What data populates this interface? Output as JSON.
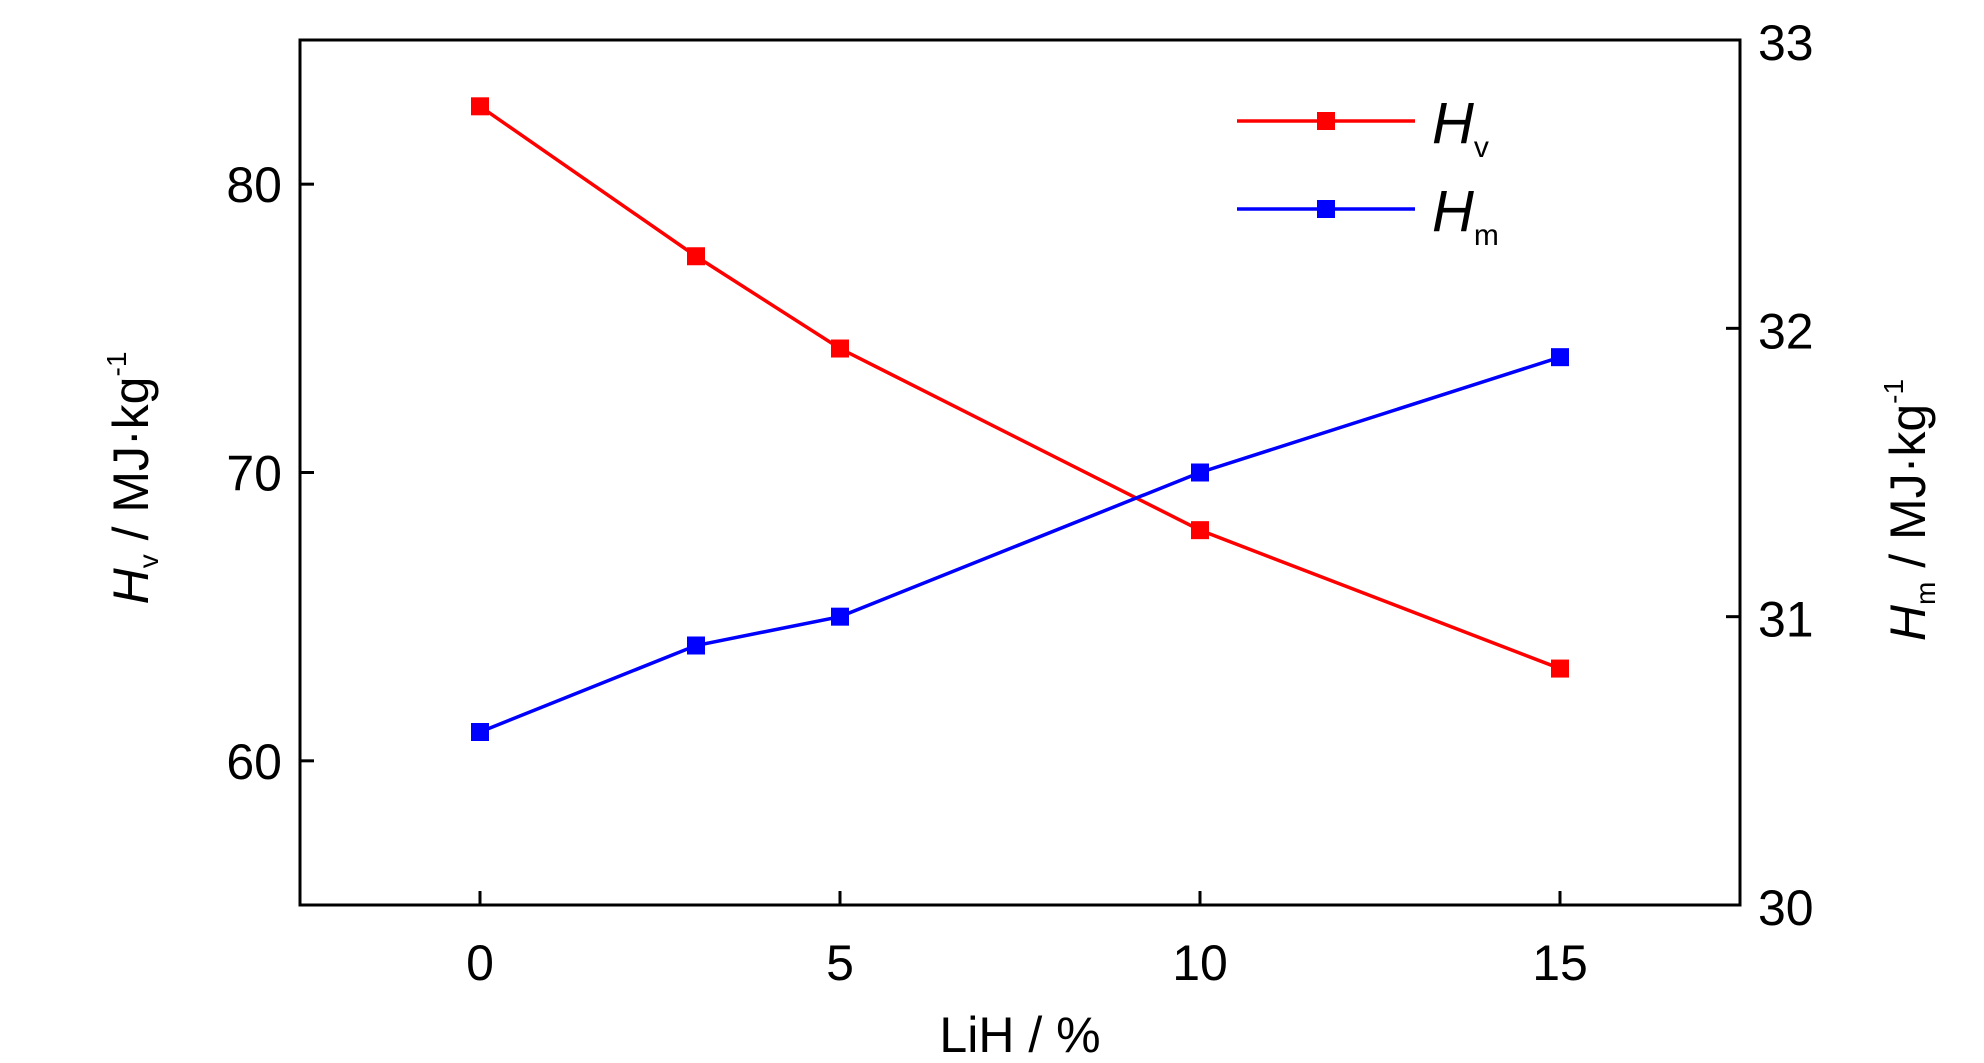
{
  "chart_data": {
    "type": "line",
    "x": [
      0,
      3,
      5,
      10,
      15
    ],
    "xlim": [
      -2.5,
      17.5
    ],
    "xticks": [
      0,
      5,
      10,
      15
    ],
    "xtick_labels": [
      "0",
      "5",
      "10",
      "15"
    ],
    "xlabel": "LiH / %",
    "ylabel_left": {
      "symbol": "H",
      "subscript": "v",
      "unit": " / MJ·kg",
      "superscript": "-1"
    },
    "ylabel_right": {
      "symbol": "H",
      "subscript": "m",
      "unit": " / MJ·kg",
      "superscript": "-1"
    },
    "ylim_left": [
      55,
      85
    ],
    "yticks_left": [
      60,
      70,
      80
    ],
    "ytick_labels_left": [
      "60",
      "70",
      "80"
    ],
    "ylim_right": [
      30,
      33
    ],
    "yticks_right": [
      30,
      31,
      32,
      33
    ],
    "ytick_labels_right": [
      "30",
      "31",
      "32",
      "33"
    ],
    "grid": false,
    "legend_position": "top-right",
    "series": [
      {
        "name": "Hv",
        "symbol": "H",
        "subscript": "v",
        "axis": "left",
        "color": "#ff0000",
        "marker": "square",
        "values": [
          82.7,
          77.5,
          74.3,
          68.0,
          63.2
        ]
      },
      {
        "name": "Hm",
        "symbol": "H",
        "subscript": "m",
        "axis": "right",
        "color": "#0000ff",
        "marker": "square",
        "values": [
          30.6,
          30.9,
          31.0,
          31.5,
          31.9
        ]
      }
    ]
  }
}
